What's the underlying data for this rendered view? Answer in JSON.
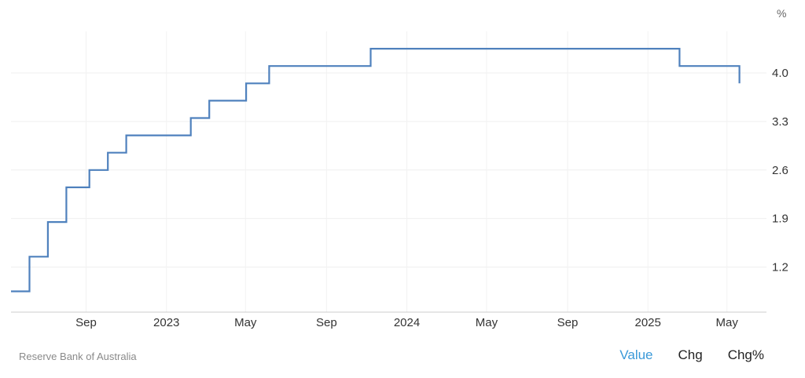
{
  "chart_data": {
    "type": "line",
    "style": "step",
    "unit": "%",
    "color": "#4f81bd",
    "grid": true,
    "y_ticks": [
      "1.2",
      "1.9",
      "2.6",
      "3.3",
      "4.0"
    ],
    "ylim": [
      0.55,
      4.6
    ],
    "x_ticks": [
      {
        "label": "Sep",
        "date": "2022-09-01"
      },
      {
        "label": "2023",
        "date": "2023-01-01"
      },
      {
        "label": "May",
        "date": "2023-05-01"
      },
      {
        "label": "Sep",
        "date": "2023-09-01"
      },
      {
        "label": "2024",
        "date": "2024-01-01"
      },
      {
        "label": "May",
        "date": "2024-05-01"
      },
      {
        "label": "Sep",
        "date": "2024-09-01"
      },
      {
        "label": "2025",
        "date": "2025-01-01"
      },
      {
        "label": "May",
        "date": "2025-05-01"
      }
    ],
    "xlim": [
      "2022-05-10",
      "2025-06-30"
    ],
    "series": [
      {
        "points": [
          {
            "x": "2022-05-10",
            "y": 0.85
          },
          {
            "x": "2022-06-07",
            "y": 1.35
          },
          {
            "x": "2022-07-05",
            "y": 1.85
          },
          {
            "x": "2022-08-02",
            "y": 2.35
          },
          {
            "x": "2022-09-06",
            "y": 2.6
          },
          {
            "x": "2022-10-04",
            "y": 2.85
          },
          {
            "x": "2022-11-01",
            "y": 3.1
          },
          {
            "x": "2022-12-06",
            "y": 3.1
          },
          {
            "x": "2023-02-07",
            "y": 3.35
          },
          {
            "x": "2023-03-07",
            "y": 3.6
          },
          {
            "x": "2023-05-02",
            "y": 3.85
          },
          {
            "x": "2023-06-06",
            "y": 4.1
          },
          {
            "x": "2023-11-07",
            "y": 4.35
          },
          {
            "x": "2025-02-18",
            "y": 4.1
          },
          {
            "x": "2025-05-20",
            "y": 3.85
          }
        ]
      }
    ]
  },
  "footer": {
    "source": "Reserve Bank of Australia",
    "tabs": [
      "Value",
      "Chg",
      "Chg%"
    ]
  }
}
